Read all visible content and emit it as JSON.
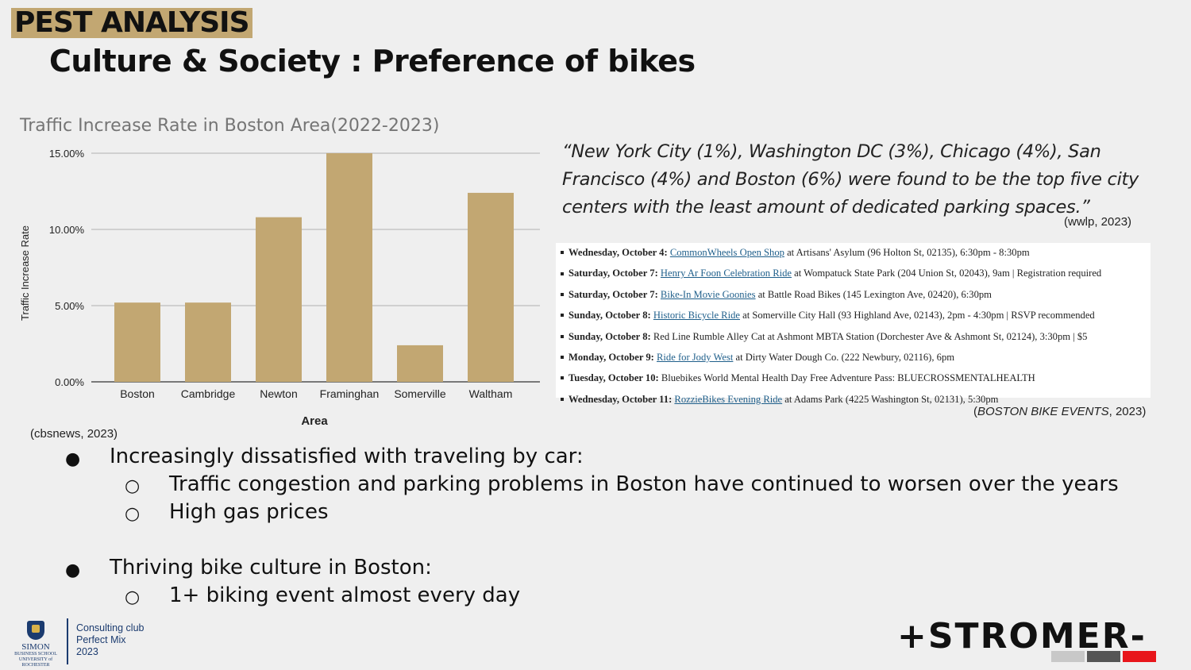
{
  "header": {
    "tag": "PEST ANALYSIS",
    "title": "Culture & Society : Preference of bikes"
  },
  "chart_data": {
    "type": "bar",
    "title": "Traffic Increase Rate in Boston Area(2022-2023)",
    "xlabel": "Area",
    "ylabel": "Traffic Increase Rate",
    "categories": [
      "Boston",
      "Cambridge",
      "Newton",
      "Framinghan",
      "Somerville",
      "Waltham"
    ],
    "values": [
      5.2,
      5.2,
      10.8,
      15.0,
      2.4,
      12.4
    ],
    "yticks": [
      "0.00%",
      "5.00%",
      "10.00%",
      "15.00%"
    ],
    "ylim": [
      0,
      15
    ],
    "grid": true,
    "bar_color": "#c2a772",
    "source": "(cbsnews, 2023)"
  },
  "quote": {
    "text": "“New York City (1%), Washington DC (3%), Chicago (4%), San Francisco (4%) and Boston (6%) were found to be the top five city centers with the least amount of dedicated parking spaces.”",
    "source": "(wwlp, 2023)"
  },
  "events": {
    "items": [
      {
        "day": "Wednesday, October 4:",
        "link": "CommonWheels Open Shop",
        "rest": " at Artisans' Asylum (96 Holton St, 02135), 6:30pm - 8:30pm"
      },
      {
        "day": "Saturday, October 7:",
        "link": "Henry Ar Foon Celebration Ride",
        "rest": " at Wompatuck State Park (204 Union St, 02043), 9am | Registration required"
      },
      {
        "day": "Saturday, October 7:",
        "link": "Bike-In Movie Goonies",
        "rest": " at Battle Road Bikes (145 Lexington Ave, 02420), 6:30pm"
      },
      {
        "day": "Sunday, October 8:",
        "link": "Historic Bicycle Ride",
        "rest": " at Somerville City Hall (93 Highland Ave, 02143), 2pm - 4:30pm | RSVP recommended"
      },
      {
        "day": "Sunday, October 8:",
        "link": "",
        "rest": " Red Line Rumble Alley Cat at Ashmont MBTA Station (Dorchester Ave & Ashmont St, 02124), 3:30pm | $5"
      },
      {
        "day": "Monday, October 9:",
        "link": "Ride for Jody West",
        "rest": " at Dirty Water Dough Co. (222 Newbury, 02116), 6pm"
      },
      {
        "day": "Tuesday, October 10:",
        "link": "",
        "rest": " Bluebikes World Mental Health Day Free Adventure Pass: BLUECROSSMENTALHEALTH"
      },
      {
        "day": "Wednesday, October 11:",
        "link": "RozzieBikes Evening Ride",
        "rest": " at Adams Park (4225 Washington St, 02131), 5:30pm"
      }
    ],
    "source_name": "BOSTON BIKE EVENTS",
    "source_year": ", 2023)"
  },
  "bullets": {
    "b1": "Increasingly dissatisfied with traveling by car:",
    "b1_sub1": "Traffic congestion and parking problems in Boston have continued to worsen over the years",
    "b1_sub2": "High gas prices",
    "b2": "Thriving bike culture in Boston:",
    "b2_sub1": "1+ biking event almost every day",
    "bullet_glyph": "●",
    "sub_glyph": "○"
  },
  "footer": {
    "school_name": "SIMON",
    "school_sub1": "BUSINESS SCHOOL",
    "school_sub2": "UNIVERSITY of ROCHESTER",
    "club_line1": "Consulting club",
    "club_line2": "Perfect Mix",
    "club_line3": "2023",
    "brand": "+STROMER-",
    "brand_colors": [
      "#c8c8c8",
      "#555555",
      "#e8161b"
    ]
  }
}
